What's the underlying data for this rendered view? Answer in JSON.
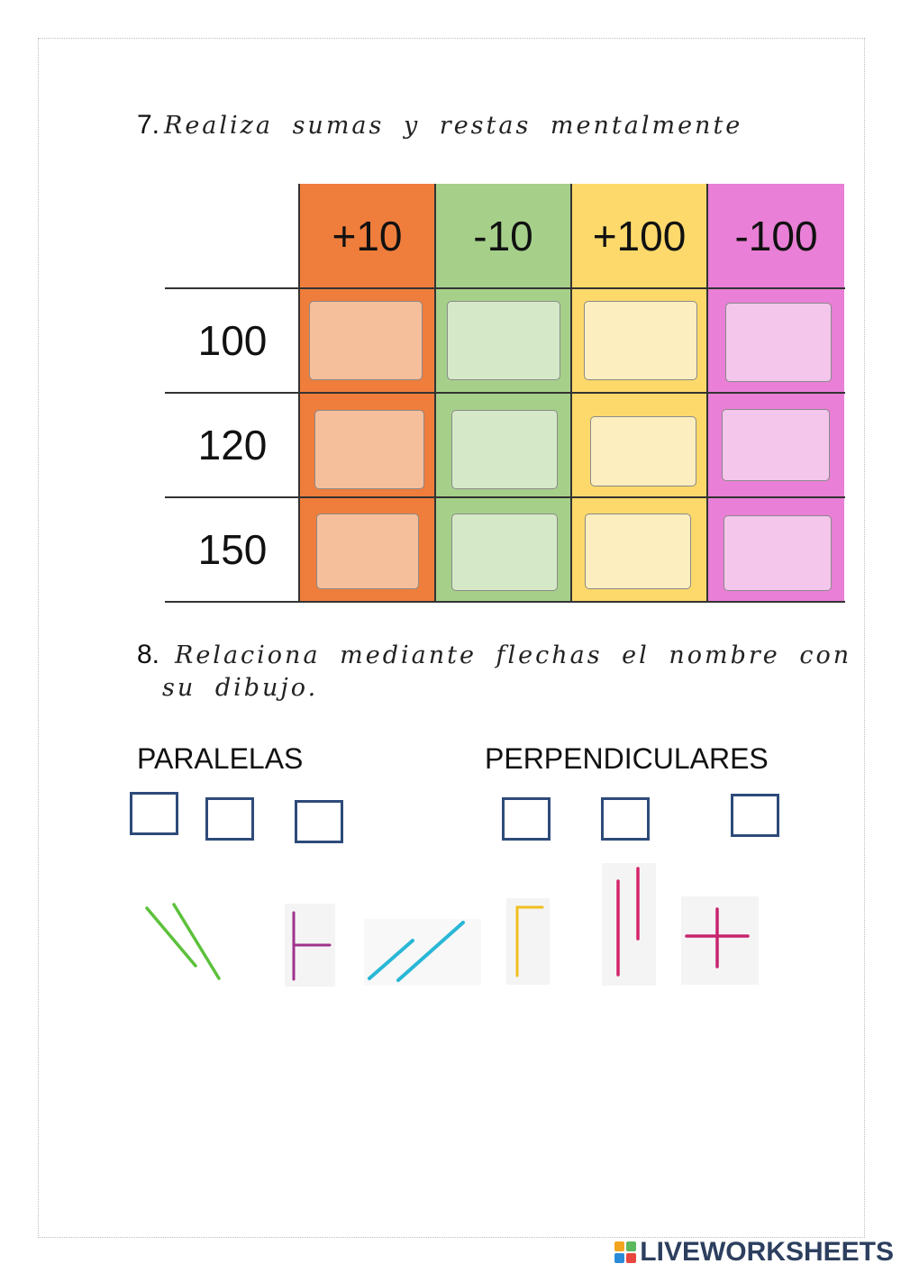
{
  "q7": {
    "number": "7.",
    "text": "Realiza sumas y restas mentalmente"
  },
  "table": {
    "headers": [
      "+10",
      "-10",
      "+100",
      "-100"
    ],
    "rows": [
      "100",
      "120",
      "150"
    ],
    "colors": {
      "orange": "#ef7d3c",
      "green": "#a6d08a",
      "yellow": "#fcd96a",
      "pink": "#e97fd6",
      "orange_box": "#f6bf9b",
      "green_box": "#d5e9c8",
      "yellow_box": "#fdeec0",
      "pink_box": "#f4c6ec"
    }
  },
  "q8": {
    "number": "8.",
    "text_line1": "Relaciona mediante flechas el nombre con",
    "text_line2": "su dibujo."
  },
  "categories": {
    "left": "PARALELAS",
    "right": "PERPENDICULARES"
  },
  "drawings": [
    {
      "icon": "green-parallel-diagonal-lines-icon",
      "color": "#5cc13b"
    },
    {
      "icon": "purple-perpendicular-t-icon",
      "color": "#a0328c"
    },
    {
      "icon": "cyan-parallel-diagonal-lines-icon",
      "color": "#29b7d6"
    },
    {
      "icon": "yellow-right-angle-icon",
      "color": "#f0c020"
    },
    {
      "icon": "magenta-parallel-vertical-lines-icon",
      "color": "#d4246b"
    },
    {
      "icon": "magenta-cross-icon",
      "color": "#c8246e"
    }
  ],
  "branding": {
    "logo_text": "LIVEWORKSHEETS",
    "logo_color": "#2d3f5f"
  }
}
